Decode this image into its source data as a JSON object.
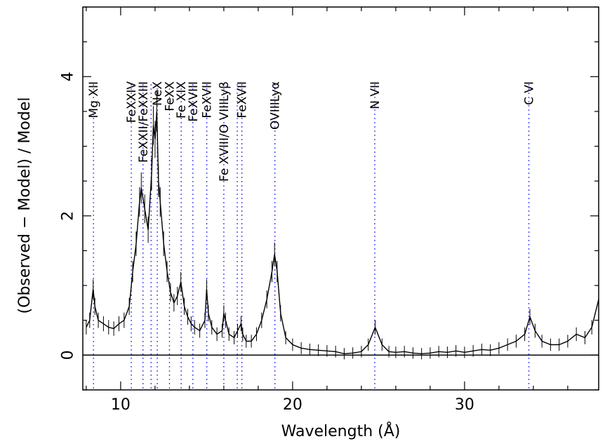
{
  "chart_data": {
    "type": "line",
    "title": "",
    "xlabel": "Wavelength (Å)",
    "ylabel": "(Observed − Model) / Model",
    "xlim": [
      7.8,
      37.8
    ],
    "ylim": [
      -0.5,
      5.0
    ],
    "x_ticks": [
      "10",
      "20",
      "30"
    ],
    "x_tick_values": [
      10,
      20,
      30
    ],
    "y_ticks": [
      "0",
      "2",
      "4"
    ],
    "y_tick_values": [
      0,
      2,
      4
    ],
    "grid": false,
    "legend": "none",
    "zero_line": 0,
    "colors": {
      "data": "#000000",
      "line_markers": "#3a3aff"
    },
    "line_identifications": [
      {
        "label": "Mg XII",
        "x": 8.42
      },
      {
        "label": "FeXXIV",
        "x": 10.62
      },
      {
        "label": "FeXXII/FeXXIII",
        "x": 11.3
      },
      {
        "label": "NeX",
        "x": 12.13
      },
      {
        "label": "FeXX",
        "x": 12.84
      },
      {
        "label": "Fe XIX",
        "x": 13.52
      },
      {
        "label": "FeXVIII",
        "x": 14.2
      },
      {
        "label": "FeXVII",
        "x": 15.01
      },
      {
        "label": "Fe XVIII/O VIIILyβ",
        "x": 16.0
      },
      {
        "label": "FeXVII",
        "x": 17.05
      },
      {
        "label": "OVIIILyα",
        "x": 18.97
      },
      {
        "label": "N VII",
        "x": 24.78
      },
      {
        "label": "C VI",
        "x": 33.74
      }
    ],
    "extra_marker_lines": [
      11.77,
      16.78
    ],
    "series": [
      {
        "x": [
          8.0,
          8.2,
          8.4,
          8.5,
          8.7,
          9.0,
          9.3,
          9.6,
          9.9,
          10.2,
          10.5,
          10.7,
          10.9,
          11.1,
          11.2,
          11.4,
          11.6,
          11.8,
          11.9,
          12.0,
          12.1,
          12.2,
          12.3,
          12.5,
          12.7,
          12.9,
          13.1,
          13.3,
          13.5,
          13.7,
          13.9,
          14.1,
          14.3,
          14.6,
          14.9,
          15.0,
          15.1,
          15.3,
          15.6,
          15.9,
          16.0,
          16.1,
          16.3,
          16.6,
          16.8,
          17.0,
          17.1,
          17.3,
          17.6,
          17.9,
          18.2,
          18.5,
          18.8,
          18.95,
          19.1,
          19.3,
          19.6,
          20.0,
          20.5,
          21.0,
          21.5,
          22.0,
          22.5,
          23.0,
          23.5,
          24.0,
          24.4,
          24.8,
          25.2,
          25.6,
          26.0,
          26.5,
          27.0,
          27.5,
          28.0,
          28.5,
          29.0,
          29.5,
          30.0,
          30.5,
          31.0,
          31.5,
          32.0,
          32.5,
          33.0,
          33.5,
          33.8,
          34.1,
          34.5,
          35.0,
          35.5,
          36.0,
          36.5,
          37.0,
          37.4,
          37.8
        ],
        "y": [
          0.4,
          0.5,
          0.95,
          0.7,
          0.5,
          0.45,
          0.4,
          0.38,
          0.45,
          0.5,
          0.7,
          1.2,
          1.6,
          2.2,
          2.4,
          2.1,
          1.8,
          2.6,
          3.3,
          3.1,
          3.5,
          2.5,
          2.2,
          1.6,
          1.2,
          0.9,
          0.75,
          0.85,
          1.05,
          0.7,
          0.55,
          0.45,
          0.4,
          0.35,
          0.5,
          0.95,
          0.6,
          0.4,
          0.3,
          0.35,
          0.6,
          0.5,
          0.3,
          0.25,
          0.35,
          0.45,
          0.3,
          0.2,
          0.2,
          0.3,
          0.5,
          0.8,
          1.2,
          1.45,
          1.2,
          0.6,
          0.25,
          0.15,
          0.1,
          0.08,
          0.07,
          0.06,
          0.05,
          0.02,
          0.03,
          0.05,
          0.15,
          0.4,
          0.15,
          0.05,
          0.04,
          0.05,
          0.03,
          0.02,
          0.03,
          0.05,
          0.04,
          0.06,
          0.04,
          0.06,
          0.08,
          0.07,
          0.1,
          0.15,
          0.2,
          0.3,
          0.55,
          0.35,
          0.2,
          0.15,
          0.15,
          0.2,
          0.3,
          0.25,
          0.4,
          0.8
        ]
      }
    ]
  }
}
